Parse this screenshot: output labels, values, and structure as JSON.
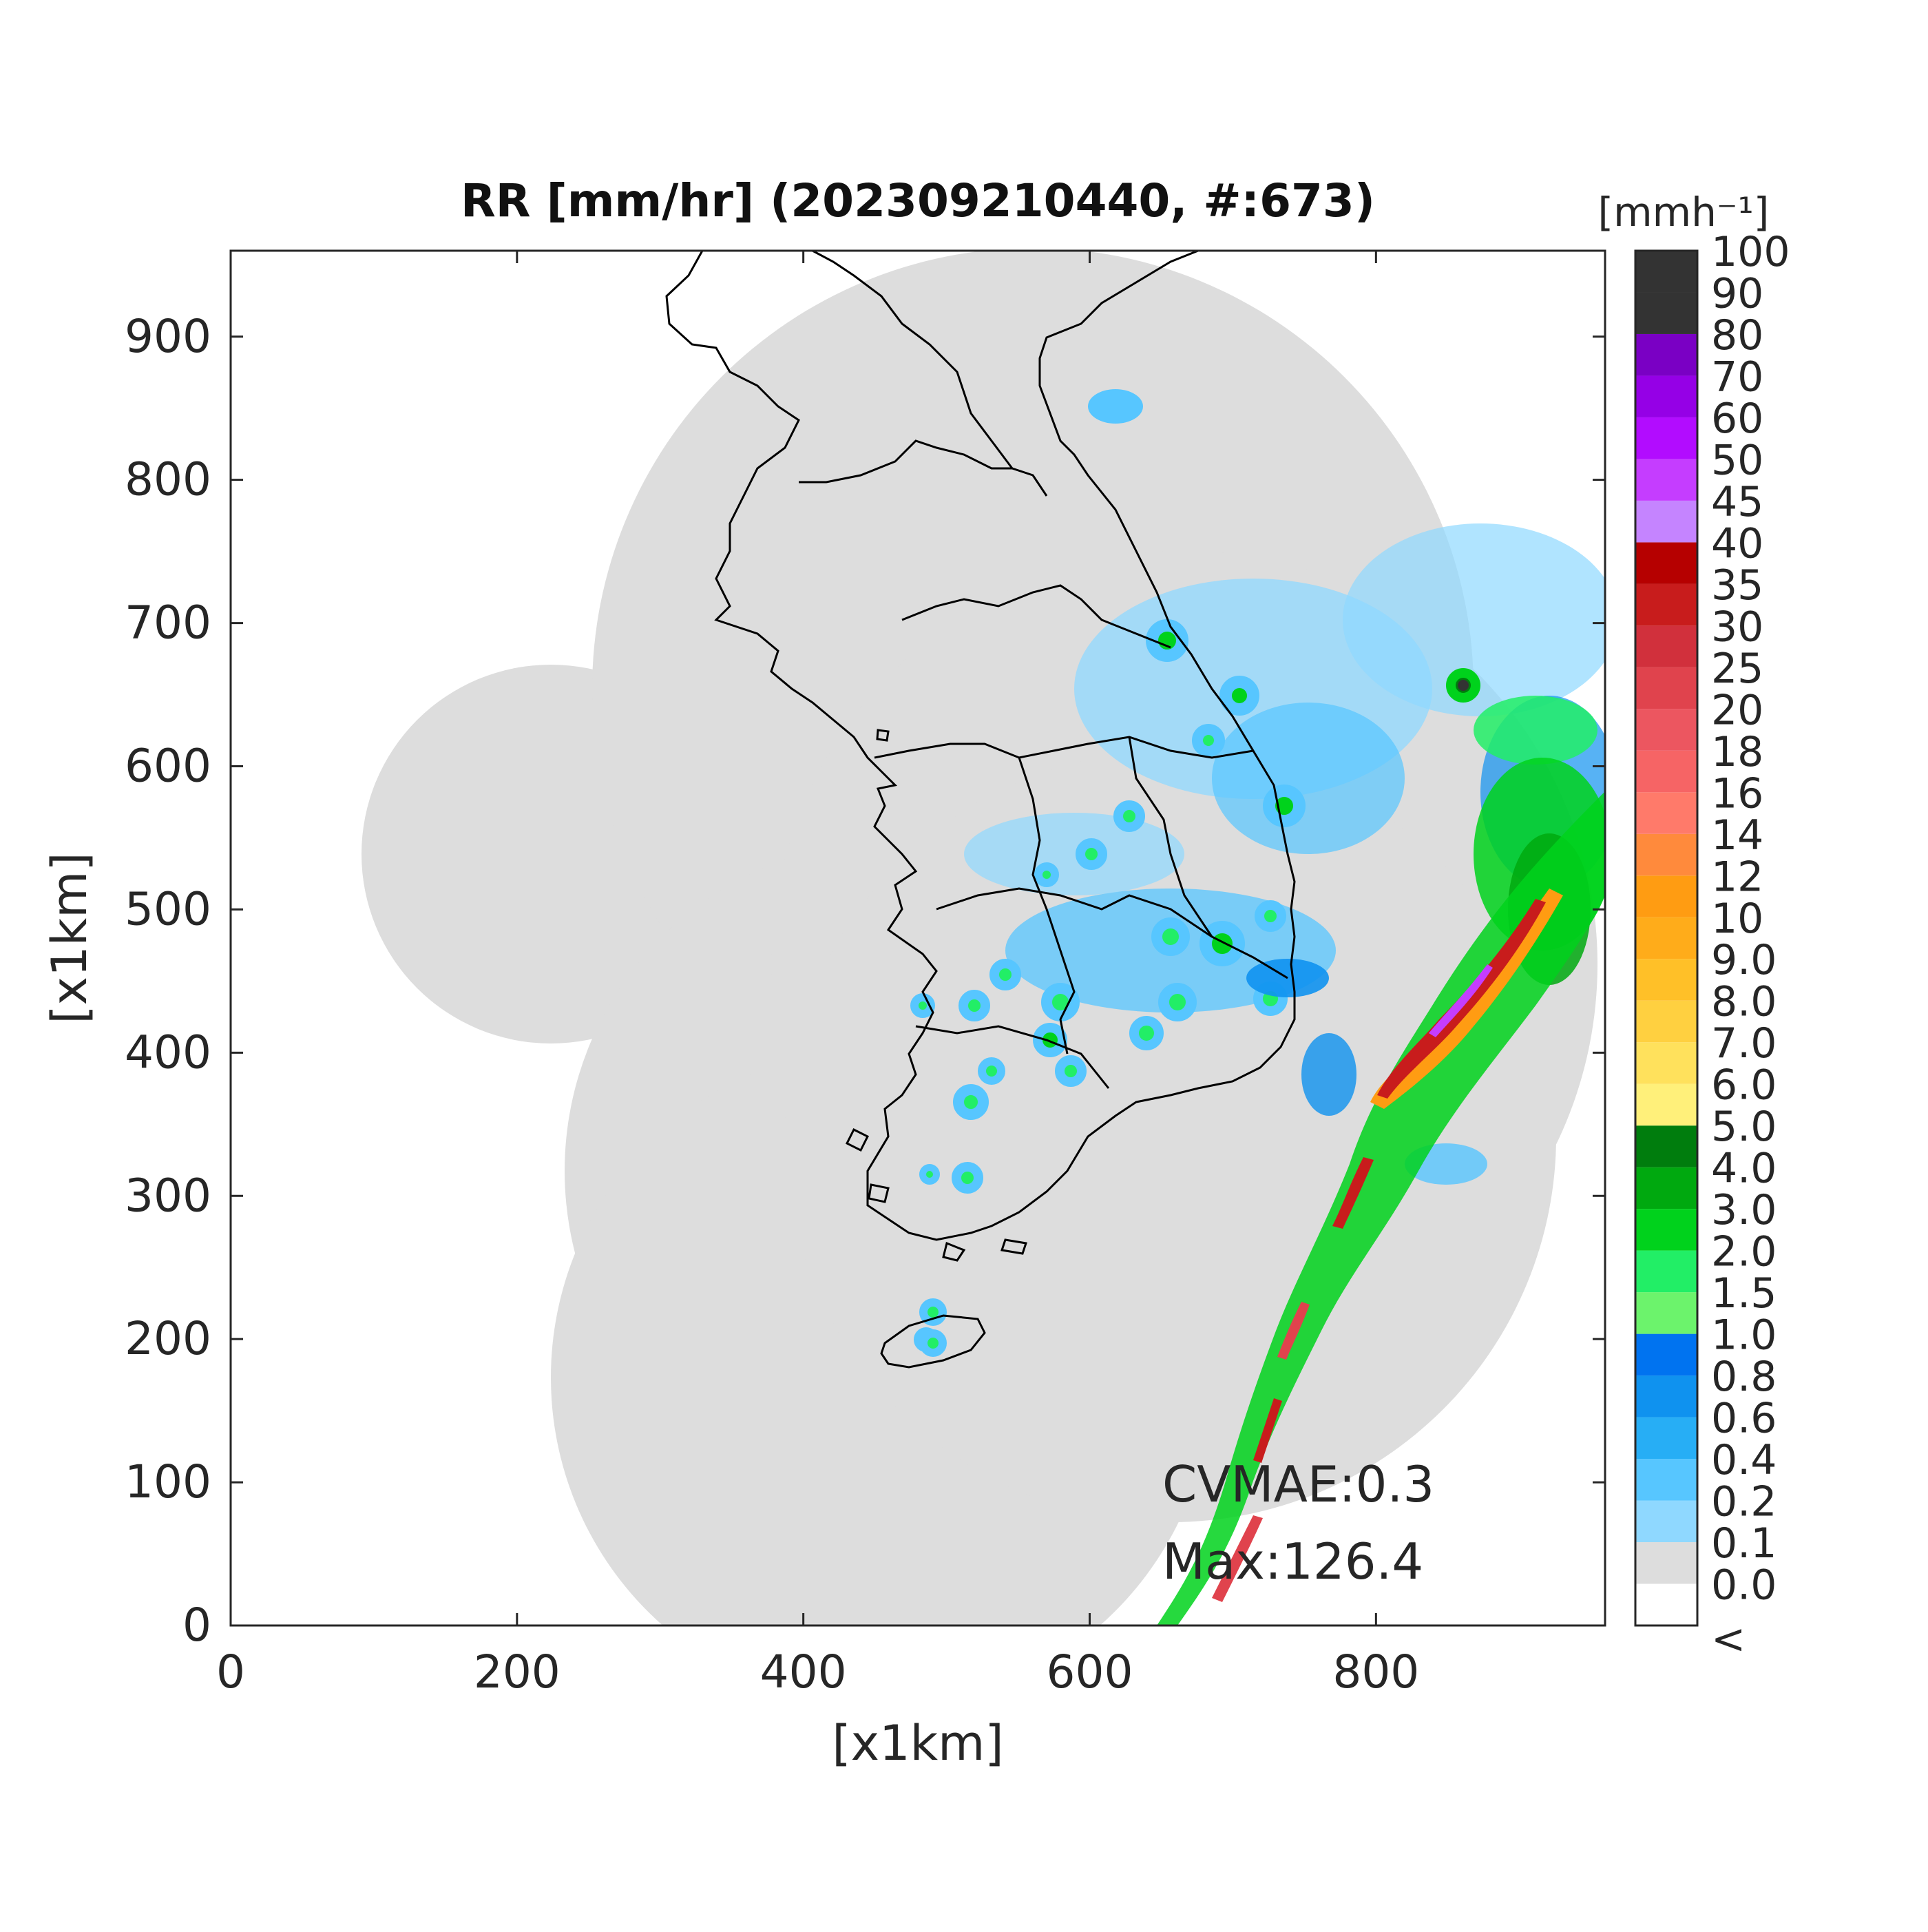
{
  "chart_data": {
    "type": "heatmap",
    "title": "RR [mm/hr] (202309210440, #:673)",
    "xlabel": "[x1km]",
    "ylabel": "[x1km]",
    "xlim": [
      0,
      960
    ],
    "ylim": [
      0,
      960
    ],
    "x_ticks": [
      0,
      200,
      400,
      600,
      800
    ],
    "y_ticks": [
      0,
      100,
      200,
      300,
      400,
      500,
      600,
      700,
      800,
      900
    ],
    "colorbar": {
      "unit": "[mmh⁻¹]",
      "bottom_label": "<",
      "levels": [
        {
          "label": "0.0",
          "color": "#ffffff"
        },
        {
          "label": "0.1",
          "color": "#dddddd"
        },
        {
          "label": "0.2",
          "color": "#8fd8ff"
        },
        {
          "label": "0.4",
          "color": "#57c6ff"
        },
        {
          "label": "0.6",
          "color": "#27aef5"
        },
        {
          "label": "0.8",
          "color": "#0f92ef"
        },
        {
          "label": "1.0",
          "color": "#0073f0"
        },
        {
          "label": "1.5",
          "color": "#6cf36c"
        },
        {
          "label": "2.0",
          "color": "#22ee66"
        },
        {
          "label": "3.0",
          "color": "#00d21c"
        },
        {
          "label": "4.0",
          "color": "#00a90f"
        },
        {
          "label": "5.0",
          "color": "#007d0d"
        },
        {
          "label": "6.0",
          "color": "#fff07a"
        },
        {
          "label": "7.0",
          "color": "#ffe15c"
        },
        {
          "label": "8.0",
          "color": "#ffd040"
        },
        {
          "label": "9.0",
          "color": "#ffc028"
        },
        {
          "label": "10",
          "color": "#ffac1a"
        },
        {
          "label": "12",
          "color": "#ff9c12"
        },
        {
          "label": "14",
          "color": "#ff8a3c"
        },
        {
          "label": "16",
          "color": "#ff7a6a"
        },
        {
          "label": "18",
          "color": "#f66465"
        },
        {
          "label": "20",
          "color": "#ec5660"
        },
        {
          "label": "25",
          "color": "#e0434d"
        },
        {
          "label": "30",
          "color": "#d1303c"
        },
        {
          "label": "35",
          "color": "#c81c1c"
        },
        {
          "label": "40",
          "color": "#b60000"
        },
        {
          "label": "45",
          "color": "#c584ff"
        },
        {
          "label": "50",
          "color": "#c53dff"
        },
        {
          "label": "60",
          "color": "#b20cff"
        },
        {
          "label": "70",
          "color": "#9500e6"
        },
        {
          "label": "80",
          "color": "#7a00c4"
        },
        {
          "label": "90",
          "color": "#333333"
        },
        {
          "label": "100",
          "color": "#333333"
        }
      ]
    },
    "annotations": [
      "CVMAE:0.3",
      "Max:126.4"
    ],
    "grid": false
  },
  "colors": {
    "no_data": "#ffffff",
    "coverage": "#dddddd",
    "coastline": "#000000"
  }
}
